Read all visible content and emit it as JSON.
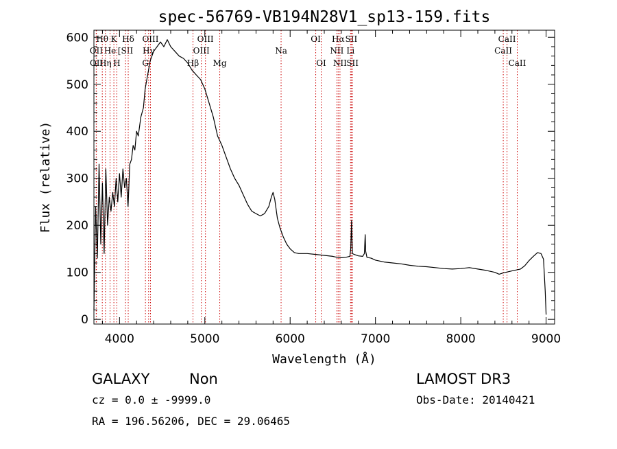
{
  "chart_data": {
    "type": "line",
    "title": "spec-56769-VB194N28V1_sp13-159.fits",
    "xlabel": "Wavelength (Å)",
    "ylabel": "Flux (relative)",
    "xlim": [
      3700,
      9100
    ],
    "ylim": [
      -10,
      615
    ],
    "xticks": [
      4000,
      5000,
      6000,
      7000,
      8000,
      9000
    ],
    "xtick_labels": [
      "4000",
      "5000",
      "6000",
      "7000",
      "8000",
      "9000"
    ],
    "yticks": [
      0,
      100,
      200,
      300,
      400,
      500,
      600
    ],
    "ytick_labels": [
      "0",
      "100",
      "200",
      "300",
      "400",
      "500",
      "600"
    ],
    "series": [
      {
        "name": "spectrum",
        "color": "#000000",
        "points": [
          [
            3700,
            20
          ],
          [
            3720,
            240
          ],
          [
            3740,
            130
          ],
          [
            3760,
            330
          ],
          [
            3780,
            160
          ],
          [
            3800,
            290
          ],
          [
            3820,
            140
          ],
          [
            3840,
            320
          ],
          [
            3860,
            200
          ],
          [
            3880,
            260
          ],
          [
            3900,
            230
          ],
          [
            3920,
            270
          ],
          [
            3940,
            240
          ],
          [
            3960,
            300
          ],
          [
            3980,
            250
          ],
          [
            4000,
            310
          ],
          [
            4020,
            260
          ],
          [
            4040,
            320
          ],
          [
            4060,
            280
          ],
          [
            4080,
            300
          ],
          [
            4100,
            240
          ],
          [
            4120,
            330
          ],
          [
            4140,
            340
          ],
          [
            4160,
            370
          ],
          [
            4180,
            360
          ],
          [
            4200,
            400
          ],
          [
            4220,
            390
          ],
          [
            4250,
            430
          ],
          [
            4280,
            450
          ],
          [
            4300,
            490
          ],
          [
            4330,
            520
          ],
          [
            4360,
            550
          ],
          [
            4400,
            570
          ],
          [
            4440,
            580
          ],
          [
            4480,
            590
          ],
          [
            4520,
            580
          ],
          [
            4560,
            595
          ],
          [
            4600,
            580
          ],
          [
            4650,
            570
          ],
          [
            4700,
            560
          ],
          [
            4750,
            555
          ],
          [
            4800,
            545
          ],
          [
            4850,
            530
          ],
          [
            4900,
            520
          ],
          [
            4950,
            510
          ],
          [
            5000,
            490
          ],
          [
            5050,
            460
          ],
          [
            5100,
            430
          ],
          [
            5150,
            390
          ],
          [
            5200,
            370
          ],
          [
            5250,
            345
          ],
          [
            5300,
            320
          ],
          [
            5350,
            300
          ],
          [
            5400,
            285
          ],
          [
            5450,
            265
          ],
          [
            5500,
            245
          ],
          [
            5550,
            230
          ],
          [
            5600,
            225
          ],
          [
            5650,
            220
          ],
          [
            5700,
            225
          ],
          [
            5750,
            240
          ],
          [
            5780,
            260
          ],
          [
            5800,
            270
          ],
          [
            5820,
            255
          ],
          [
            5850,
            215
          ],
          [
            5880,
            195
          ],
          [
            5920,
            175
          ],
          [
            5960,
            160
          ],
          [
            6000,
            150
          ],
          [
            6050,
            142
          ],
          [
            6100,
            140
          ],
          [
            6200,
            140
          ],
          [
            6300,
            138
          ],
          [
            6400,
            136
          ],
          [
            6500,
            134
          ],
          [
            6550,
            132
          ],
          [
            6600,
            131
          ],
          [
            6650,
            132
          ],
          [
            6700,
            134
          ],
          [
            6710,
            150
          ],
          [
            6720,
            210
          ],
          [
            6725,
            170
          ],
          [
            6730,
            140
          ],
          [
            6750,
            138
          ],
          [
            6800,
            135
          ],
          [
            6850,
            134
          ],
          [
            6870,
            140
          ],
          [
            6880,
            180
          ],
          [
            6885,
            145
          ],
          [
            6900,
            132
          ],
          [
            6950,
            130
          ],
          [
            7000,
            126
          ],
          [
            7100,
            122
          ],
          [
            7200,
            120
          ],
          [
            7300,
            118
          ],
          [
            7400,
            115
          ],
          [
            7500,
            113
          ],
          [
            7600,
            112
          ],
          [
            7700,
            110
          ],
          [
            7800,
            108
          ],
          [
            7900,
            107
          ],
          [
            8000,
            108
          ],
          [
            8100,
            110
          ],
          [
            8200,
            107
          ],
          [
            8300,
            104
          ],
          [
            8400,
            100
          ],
          [
            8450,
            96
          ],
          [
            8500,
            99
          ],
          [
            8600,
            103
          ],
          [
            8700,
            107
          ],
          [
            8750,
            114
          ],
          [
            8800,
            125
          ],
          [
            8850,
            134
          ],
          [
            8900,
            142
          ],
          [
            8940,
            140
          ],
          [
            8970,
            128
          ],
          [
            8990,
            60
          ],
          [
            9000,
            10
          ]
        ]
      }
    ],
    "line_markers": [
      {
        "label": "Hθ",
        "x": 3798,
        "row": 1
      },
      {
        "label": "OII",
        "x": 3727,
        "row": 2
      },
      {
        "label": "OII",
        "x": 3729,
        "row": 3
      },
      {
        "label": "He",
        "x": 3889,
        "row": 2
      },
      {
        "label": "Hη",
        "x": 3835,
        "row": 3
      },
      {
        "label": "K",
        "x": 3934,
        "row": 1
      },
      {
        "label": "H",
        "x": 3969,
        "row": 3
      },
      {
        "label": "[SII",
        "x": 4070,
        "row": 2
      },
      {
        "label": "Hδ",
        "x": 4102,
        "row": 1
      },
      {
        "label": "OIII",
        "x": 4363,
        "row": 1
      },
      {
        "label": "Hγ",
        "x": 4341,
        "row": 2
      },
      {
        "label": "G",
        "x": 4304,
        "row": 3
      },
      {
        "label": "Hβ",
        "x": 4861,
        "row": 3
      },
      {
        "label": "OIII",
        "x": 5007,
        "row": 1
      },
      {
        "label": "OIII",
        "x": 4959,
        "row": 2
      },
      {
        "label": "Mg",
        "x": 5175,
        "row": 3
      },
      {
        "label": "Na",
        "x": 5894,
        "row": 2
      },
      {
        "label": "OI",
        "x": 6300,
        "row": 1
      },
      {
        "label": "OI",
        "x": 6364,
        "row": 3
      },
      {
        "label": "Hα",
        "x": 6563,
        "row": 1
      },
      {
        "label": "NII",
        "x": 6548,
        "row": 2
      },
      {
        "label": "NII",
        "x": 6584,
        "row": 3
      },
      {
        "label": "SII",
        "x": 6717,
        "row": 1
      },
      {
        "label": "Li",
        "x": 6708,
        "row": 2
      },
      {
        "label": "SII",
        "x": 6731,
        "row": 3
      },
      {
        "label": "CaII",
        "x": 8542,
        "row": 1
      },
      {
        "label": "CaII",
        "x": 8498,
        "row": 2
      },
      {
        "label": "CaII",
        "x": 8662,
        "row": 3
      }
    ],
    "marker_color": "#cc0000"
  },
  "info": {
    "object_class": "GALAXY",
    "subclass": "Non",
    "survey": "LAMOST DR3",
    "redshift": "cz = 0.0 ± -9999.0",
    "obs_date": "Obs-Date: 20140421",
    "coords": "RA = 196.56206, DEC =  29.06465"
  }
}
